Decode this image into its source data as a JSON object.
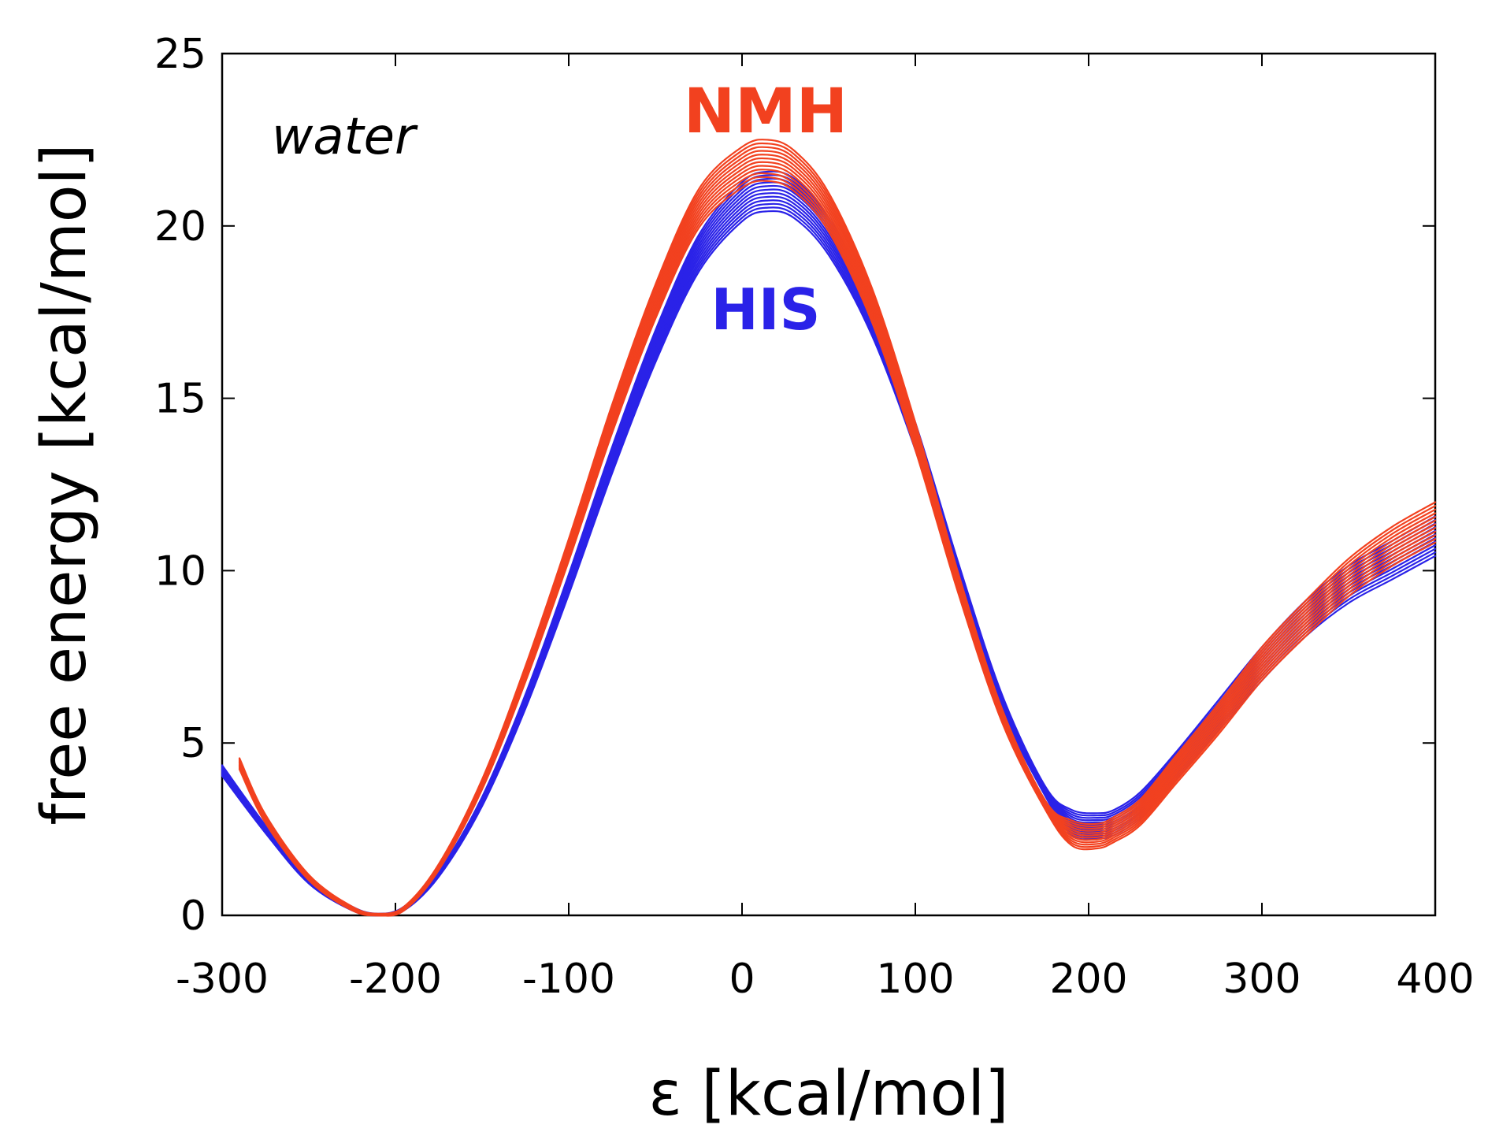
{
  "chart_data": {
    "type": "line",
    "title": "",
    "xlabel": "ε [kcal/mol]",
    "ylabel": "free energy [kcal/mol]",
    "xlim": [
      -300,
      400
    ],
    "ylim": [
      0,
      25
    ],
    "xticks": [
      -300,
      -200,
      -100,
      0,
      100,
      200,
      300,
      400
    ],
    "yticks": [
      0,
      5,
      10,
      15,
      20,
      25
    ],
    "xtick_labels": [
      "-300",
      "-200",
      "-100",
      "0",
      "100",
      "200",
      "300",
      "400"
    ],
    "ytick_labels": [
      "0",
      "5",
      "10",
      "15",
      "20",
      "25"
    ],
    "grid": false,
    "annotations": [
      {
        "id": "water",
        "text": "water",
        "color": "#000000"
      },
      {
        "id": "nmh",
        "text": "NMH",
        "color": "#f2411f"
      },
      {
        "id": "his",
        "text": "HIS",
        "color": "#2a22e8"
      }
    ],
    "series": [
      {
        "name": "HIS",
        "color": "#2a22e8",
        "copies": 12,
        "x": [
          -300,
          -275,
          -250,
          -225,
          -210,
          -195,
          -175,
          -150,
          -125,
          -100,
          -75,
          -50,
          -25,
          0,
          15,
          30,
          50,
          75,
          100,
          125,
          150,
          175,
          190,
          205,
          215,
          230,
          250,
          275,
          300,
          325,
          350,
          375,
          400
        ],
        "values": [
          4.2,
          2.5,
          1.0,
          0.2,
          0.0,
          0.2,
          1.2,
          3.3,
          6.2,
          9.6,
          13.2,
          16.5,
          19.2,
          20.7,
          21.0,
          20.8,
          19.7,
          17.3,
          13.9,
          9.9,
          6.2,
          3.6,
          2.7,
          2.6,
          2.7,
          3.2,
          4.3,
          5.8,
          7.3,
          8.6,
          9.6,
          10.3,
          11.0
        ]
      },
      {
        "name": "NMH",
        "color": "#f2411f",
        "copies": 12,
        "x": [
          -290,
          -275,
          -250,
          -225,
          -210,
          -195,
          -175,
          -150,
          -125,
          -100,
          -75,
          -50,
          -25,
          0,
          15,
          30,
          50,
          75,
          100,
          125,
          150,
          175,
          190,
          205,
          215,
          230,
          250,
          275,
          300,
          325,
          350,
          375,
          400
        ],
        "values": [
          4.4,
          2.8,
          1.1,
          0.2,
          0.0,
          0.2,
          1.4,
          3.8,
          7.0,
          10.6,
          14.4,
          17.8,
          20.5,
          21.7,
          21.9,
          21.6,
          20.4,
          17.7,
          13.9,
          9.6,
          5.8,
          3.2,
          2.4,
          2.3,
          2.5,
          3.0,
          4.2,
          5.7,
          7.3,
          8.6,
          9.8,
          10.7,
          11.4
        ]
      }
    ]
  }
}
